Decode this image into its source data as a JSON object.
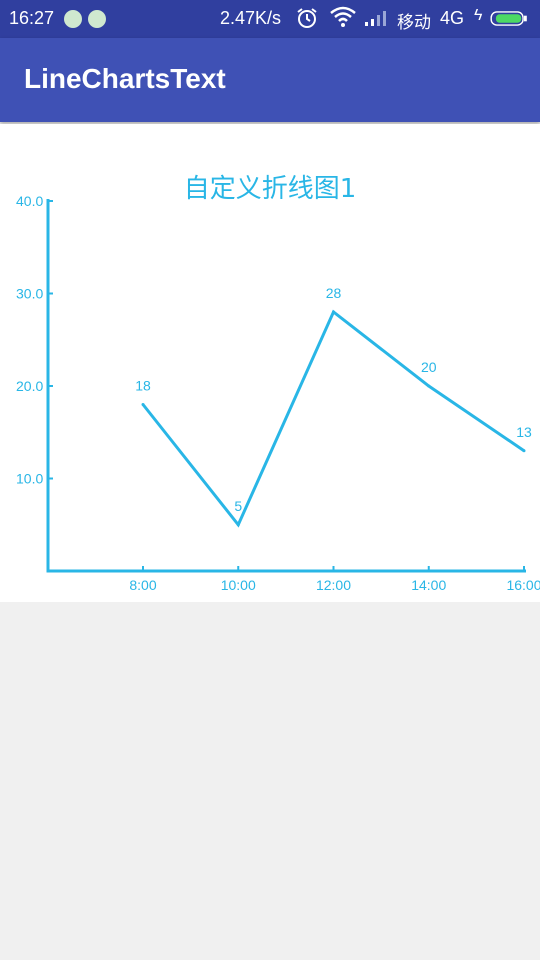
{
  "status_bar": {
    "time": "16:27",
    "net_speed": "2.47K/s",
    "carrier": "移动",
    "network_type": "4G",
    "icons": [
      "notification-icon",
      "notification-icon",
      "alarm-icon",
      "wifi-icon",
      "signal-icon",
      "charging-icon",
      "battery-icon"
    ],
    "battery_color": "#4cd964"
  },
  "app_bar": {
    "title": "LineChartsText",
    "color": "#3f51b5"
  },
  "chart_data": {
    "type": "line",
    "title": "自定义折线图1",
    "x": [
      "8:00",
      "10:00",
      "12:00",
      "14:00",
      "16:00"
    ],
    "values": [
      18,
      5,
      28,
      20,
      13
    ],
    "data_labels": [
      "18",
      "5",
      "28",
      "20",
      "13"
    ],
    "y_ticks": [
      "10.0",
      "20.0",
      "30.0",
      "40.0"
    ],
    "ylim": [
      0,
      40
    ],
    "color": "#29b6e6",
    "grid": false
  }
}
